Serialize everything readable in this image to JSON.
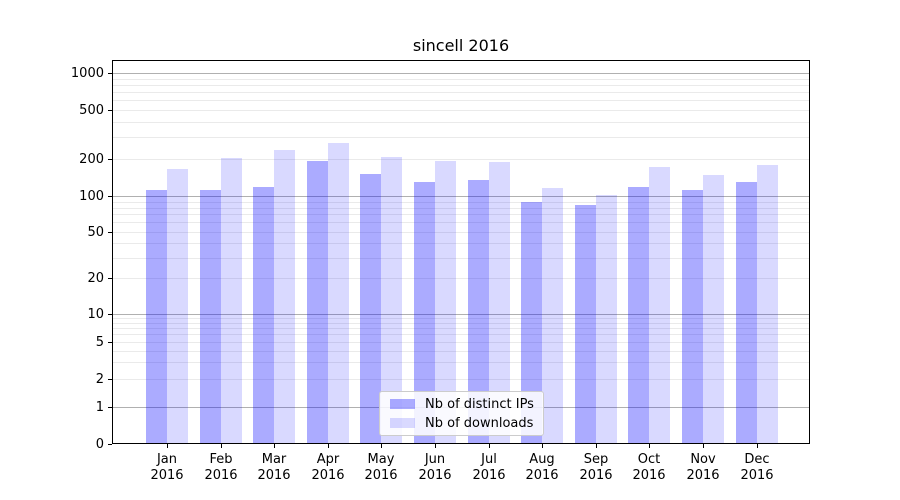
{
  "chart_data": {
    "type": "bar",
    "title": "sincell 2016",
    "categories": [
      "Jan 2016",
      "Feb 2016",
      "Mar 2016",
      "Apr 2016",
      "May 2016",
      "Jun 2016",
      "Jul 2016",
      "Aug 2016",
      "Sep 2016",
      "Oct 2016",
      "Nov 2016",
      "Dec 2016"
    ],
    "series": [
      {
        "name": "Nb of distinct IPs",
        "color": "rgba(0,0,255,0.33)",
        "solid_hex": "#ababff",
        "values": [
          112,
          113,
          120,
          192,
          151,
          130,
          135,
          90,
          85,
          120,
          112,
          130
        ]
      },
      {
        "name": "Nb of downloads",
        "color": "rgba(0,0,255,0.15)",
        "solid_hex": "#d9d9ff",
        "values": [
          168,
          203,
          238,
          273,
          210,
          192,
          191,
          116,
          102,
          172,
          150,
          180
        ]
      }
    ],
    "xlabel": "",
    "ylabel": "",
    "yscale": "symlog (linear 0-1, log above 1)",
    "yticks": [
      0,
      1,
      2,
      5,
      10,
      20,
      50,
      100,
      200,
      500,
      1000
    ],
    "ylim": [
      0,
      1270
    ],
    "grid": "on (major decades darker, minor log lines faint)",
    "legend_position": "lower center inside plot"
  }
}
